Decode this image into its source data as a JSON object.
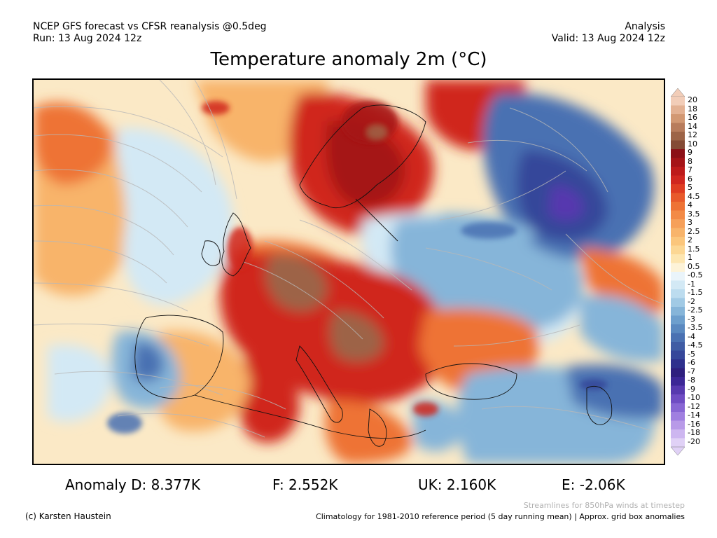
{
  "header": {
    "line1_left": "NCEP GFS forecast vs CFSR reanalysis @0.5deg",
    "line2_left": "Run: 13 Aug 2024 12z",
    "line1_right": "Analysis",
    "line2_right": "Valid: 13 Aug 2024 12z"
  },
  "title": "Temperature anomaly 2m (°C)",
  "colorbar": {
    "labels": [
      "20",
      "18",
      "16",
      "14",
      "12",
      "10",
      "9",
      "8",
      "7",
      "6",
      "5",
      "4.5",
      "4",
      "3.5",
      "3",
      "2.5",
      "2",
      "1.5",
      "1",
      "0.5",
      "-0.5",
      "-1",
      "-1.5",
      "-2",
      "-2.5",
      "-3",
      "-3.5",
      "-4",
      "-4.5",
      "-5",
      "-6",
      "-7",
      "-8",
      "-9",
      "-10",
      "-12",
      "-14",
      "-16",
      "-18",
      "-20"
    ],
    "colors": [
      "#f2cdb8",
      "#e3b193",
      "#d29873",
      "#b87c5c",
      "#9d6447",
      "#844b35",
      "#8b0f16",
      "#a51317",
      "#bd1a1a",
      "#d0261f",
      "#df3d22",
      "#e85a2b",
      "#ee7335",
      "#f38a46",
      "#f6a05a",
      "#f8b46b",
      "#fbc67c",
      "#fcd794",
      "#fde6b1",
      "#fdf3d8",
      "#eaf4fa",
      "#d3e9f5",
      "#bcdcef",
      "#a1cae5",
      "#86b5d9",
      "#6d9fcd",
      "#5a89c0",
      "#4a71b2",
      "#3f5ca4",
      "#36479a",
      "#2e308d",
      "#2e1f7e",
      "#3c2796",
      "#5739af",
      "#6f4cc3",
      "#8866d4",
      "#a07fe0",
      "#b89ae8",
      "#cdb6f0",
      "#e0d1f6"
    ]
  },
  "stats": {
    "d": "Anomaly D: 8.377K",
    "f": "F: 2.552K",
    "uk": "UK: 2.160K",
    "e": "E: -2.06K"
  },
  "footer": {
    "streamlines_note": "Streamlines for 850hPa winds at timestep",
    "copyright": "(c) Karsten Haustein",
    "climatology_note": "Climatology for 1981-2010 reference period (5 day running mean) | Approx. grid box anomalies"
  },
  "map_colors": {
    "ocean_neutral": "#fbe9c6",
    "warm_light": "#f8b46b",
    "warm_mid": "#ee7335",
    "warm_strong": "#d0261f",
    "hot": "#a51317",
    "very_hot": "#9d6447",
    "cool_light": "#d3e9f5",
    "cool_mid": "#86b5d9",
    "cool_strong": "#4a71b2",
    "cold": "#36479a",
    "very_cold": "#5739af"
  }
}
